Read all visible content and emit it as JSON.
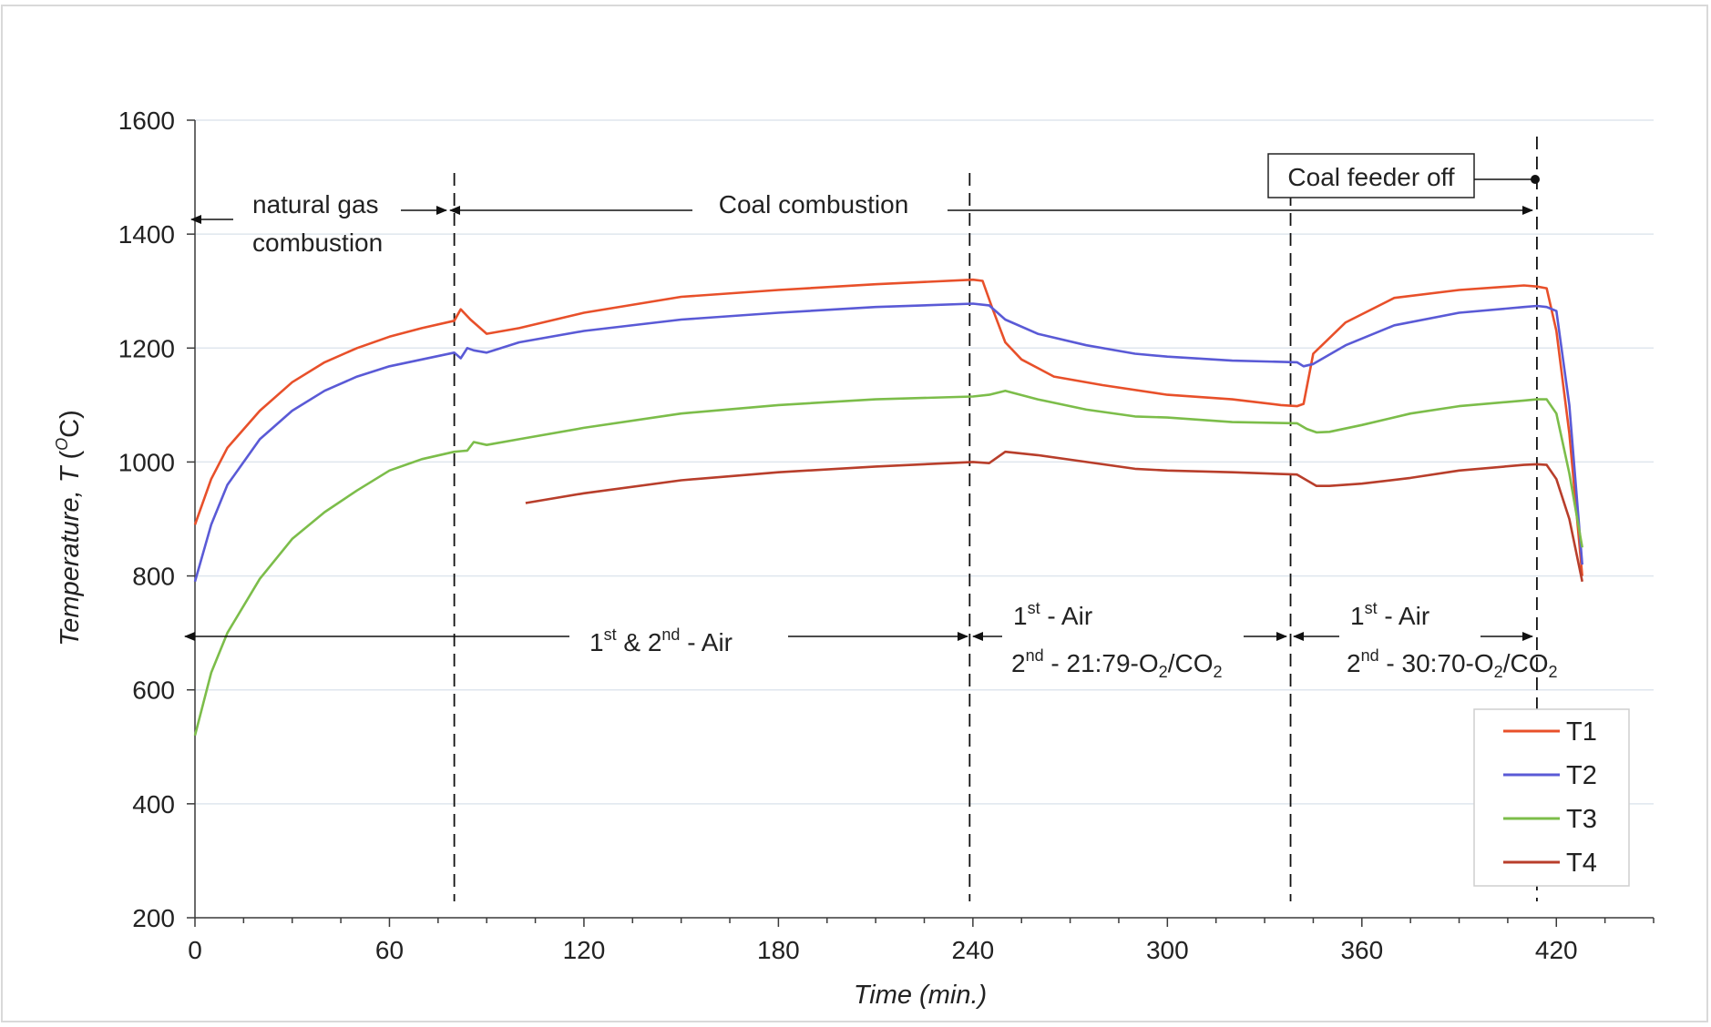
{
  "chart_data": {
    "type": "line",
    "xlabel": "Time (min.)",
    "ylabel_main": "Temperature, ",
    "ylabel_var": "T",
    "ylabel_unit_open": " (",
    "ylabel_unit_sup": "O",
    "ylabel_unit_close": "C)",
    "xlim": [
      0,
      450
    ],
    "ylim": [
      200,
      1600
    ],
    "xticks": [
      0,
      60,
      120,
      180,
      240,
      300,
      360,
      420
    ],
    "yticks": [
      200,
      400,
      600,
      800,
      1000,
      1200,
      1400,
      1600
    ],
    "grid": "horizontal",
    "legend_position": "bottom-right",
    "series": [
      {
        "name": "T1",
        "color": "#e8502a",
        "x": [
          0,
          5,
          10,
          20,
          30,
          40,
          50,
          60,
          70,
          80,
          82,
          85,
          90,
          100,
          120,
          150,
          180,
          210,
          240,
          243,
          246,
          250,
          255,
          265,
          280,
          300,
          320,
          335,
          340,
          342,
          345,
          355,
          370,
          390,
          410,
          414,
          417,
          420,
          424,
          428
        ],
        "y": [
          890,
          970,
          1025,
          1090,
          1140,
          1175,
          1200,
          1220,
          1235,
          1248,
          1268,
          1250,
          1225,
          1235,
          1262,
          1290,
          1302,
          1312,
          1320,
          1318,
          1270,
          1210,
          1180,
          1150,
          1135,
          1118,
          1110,
          1100,
          1098,
          1102,
          1190,
          1245,
          1288,
          1302,
          1310,
          1308,
          1305,
          1230,
          1050,
          800
        ]
      },
      {
        "name": "T2",
        "color": "#5a5ad6",
        "x": [
          0,
          5,
          10,
          20,
          30,
          40,
          50,
          60,
          70,
          80,
          82,
          84,
          86,
          90,
          100,
          120,
          150,
          180,
          210,
          240,
          245,
          250,
          260,
          275,
          290,
          300,
          320,
          340,
          342,
          345,
          355,
          370,
          390,
          410,
          414,
          417,
          420,
          424,
          428
        ],
        "y": [
          790,
          890,
          960,
          1040,
          1090,
          1125,
          1150,
          1168,
          1180,
          1192,
          1182,
          1200,
          1196,
          1192,
          1210,
          1230,
          1250,
          1262,
          1272,
          1278,
          1275,
          1250,
          1225,
          1205,
          1190,
          1185,
          1178,
          1175,
          1168,
          1172,
          1205,
          1240,
          1262,
          1272,
          1274,
          1272,
          1265,
          1100,
          820
        ]
      },
      {
        "name": "T3",
        "color": "#7cbd4a",
        "x": [
          0,
          5,
          10,
          20,
          30,
          40,
          50,
          60,
          70,
          80,
          84,
          86,
          90,
          100,
          120,
          150,
          180,
          210,
          240,
          245,
          250,
          260,
          275,
          290,
          300,
          320,
          340,
          343,
          346,
          350,
          360,
          375,
          390,
          410,
          414,
          417,
          420,
          424,
          428
        ],
        "y": [
          520,
          630,
          700,
          795,
          865,
          912,
          950,
          985,
          1005,
          1018,
          1020,
          1035,
          1030,
          1040,
          1060,
          1085,
          1100,
          1110,
          1115,
          1118,
          1125,
          1110,
          1092,
          1080,
          1078,
          1070,
          1068,
          1058,
          1052,
          1053,
          1065,
          1085,
          1098,
          1108,
          1110,
          1110,
          1085,
          980,
          850
        ]
      },
      {
        "name": "T4",
        "color": "#b83e2b",
        "x": [
          102,
          120,
          150,
          180,
          210,
          240,
          245,
          250,
          260,
          275,
          290,
          300,
          320,
          340,
          343,
          346,
          350,
          360,
          375,
          390,
          410,
          414,
          417,
          420,
          424,
          428
        ],
        "y": [
          928,
          945,
          968,
          982,
          992,
          1000,
          998,
          1018,
          1012,
          1000,
          988,
          985,
          982,
          978,
          968,
          958,
          958,
          962,
          972,
          985,
          995,
          996,
          995,
          970,
          900,
          790
        ]
      }
    ],
    "annotations": {
      "natural_gas_1": "natural gas",
      "natural_gas_2": "combustion",
      "coal_combustion": "Coal combustion",
      "coal_feeder_off": "Coal feeder off",
      "p1_a": "1",
      "p1_a_sup": "st",
      "p1_b": " & 2",
      "p1_b_sup": "nd",
      "p1_c": " -  Air",
      "p2_l1_a": "1",
      "p2_l1_sup": "st",
      "p2_l1_b": " - Air",
      "p2_l2_a": "2",
      "p2_l2_sup": "nd",
      "p2_l2_b": " - 21:79-O",
      "p2_l2_sub": "2",
      "p2_l2_c": "/CO",
      "p2_l2_sub2": "2",
      "p3_l1_a": "1",
      "p3_l1_sup": "st",
      "p3_l1_b": " - Air",
      "p3_l2_a": "2",
      "p3_l2_sup": "nd",
      "p3_l2_b": " - 30:70-O",
      "p3_l2_sub": "2",
      "p3_l2_c": "/CO",
      "p3_l2_sub2": "2"
    },
    "event_markers_x": [
      80,
      239,
      338,
      414
    ]
  }
}
